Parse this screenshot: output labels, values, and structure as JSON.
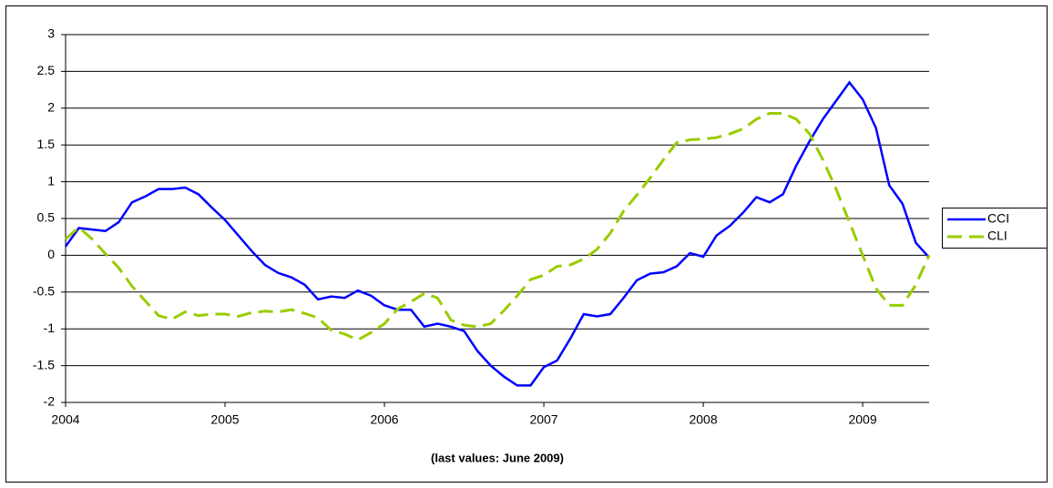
{
  "chart_data": {
    "type": "line",
    "xlabel": "(last values: June 2009)",
    "x": [
      2004,
      2004.0833,
      2004.1667,
      2004.25,
      2004.3333,
      2004.4167,
      2004.5,
      2004.5833,
      2004.6667,
      2004.75,
      2004.8333,
      2004.9167,
      2005,
      2005.0833,
      2005.1667,
      2005.25,
      2005.3333,
      2005.4167,
      2005.5,
      2005.5833,
      2005.6667,
      2005.75,
      2005.8333,
      2005.9167,
      2006,
      2006.0833,
      2006.1667,
      2006.25,
      2006.3333,
      2006.4167,
      2006.5,
      2006.5833,
      2006.6667,
      2006.75,
      2006.8333,
      2006.9167,
      2007,
      2007.0833,
      2007.1667,
      2007.25,
      2007.3333,
      2007.4167,
      2007.5,
      2007.5833,
      2007.6667,
      2007.75,
      2007.8333,
      2007.9167,
      2008,
      2008.0833,
      2008.1667,
      2008.25,
      2008.3333,
      2008.4167,
      2008.5,
      2008.5833,
      2008.6667,
      2008.75,
      2008.8333,
      2008.9167,
      2009,
      2009.0833,
      2009.1667,
      2009.25,
      2009.3333,
      2009.4167
    ],
    "series": [
      {
        "name": "CCI",
        "color": "#0000ff",
        "style": "solid",
        "values": [
          0.12,
          0.37,
          0.35,
          0.33,
          0.45,
          0.72,
          0.8,
          0.9,
          0.9,
          0.92,
          0.83,
          0.65,
          0.48,
          0.27,
          0.06,
          -0.13,
          -0.24,
          -0.3,
          -0.4,
          -0.6,
          -0.56,
          -0.58,
          -0.48,
          -0.55,
          -0.68,
          -0.74,
          -0.74,
          -0.97,
          -0.93,
          -0.97,
          -1.03,
          -1.3,
          -1.5,
          -1.65,
          -1.77,
          -1.77,
          -1.52,
          -1.43,
          -1.13,
          -0.8,
          -0.83,
          -0.8,
          -0.58,
          -0.34,
          -0.25,
          -0.23,
          -0.15,
          0.03,
          -0.02,
          0.27,
          0.4,
          0.58,
          0.79,
          0.72,
          0.83,
          1.22,
          1.55,
          1.85,
          2.1,
          2.35,
          2.12,
          1.73,
          0.95,
          0.7,
          0.17,
          -0.03
        ]
      },
      {
        "name": "CLI",
        "color": "#99cc00",
        "style": "dashed",
        "values": [
          0.22,
          0.38,
          0.22,
          0.02,
          -0.17,
          -0.42,
          -0.62,
          -0.82,
          -0.87,
          -0.77,
          -0.82,
          -0.8,
          -0.8,
          -0.83,
          -0.78,
          -0.76,
          -0.77,
          -0.74,
          -0.79,
          -0.85,
          -1.02,
          -1.07,
          -1.15,
          -1.05,
          -0.93,
          -0.73,
          -0.63,
          -0.52,
          -0.58,
          -0.88,
          -0.95,
          -0.97,
          -0.93,
          -0.75,
          -0.55,
          -0.33,
          -0.27,
          -0.15,
          -0.13,
          -0.05,
          0.08,
          0.3,
          0.6,
          0.82,
          1.05,
          1.3,
          1.53,
          1.57,
          1.58,
          1.6,
          1.65,
          1.72,
          1.85,
          1.93,
          1.93,
          1.85,
          1.65,
          1.3,
          0.9,
          0.45,
          0.0,
          -0.45,
          -0.68,
          -0.68,
          -0.4,
          0.0
        ]
      }
    ],
    "xlim": [
      2004,
      2009.4167
    ],
    "xticks": [
      2004,
      2005,
      2006,
      2007,
      2008,
      2009
    ],
    "ylim": [
      -2,
      3
    ],
    "yticks": [
      -2,
      -1.5,
      -1,
      -0.5,
      0,
      0.5,
      1,
      1.5,
      2,
      2.5,
      3
    ],
    "grid": true,
    "legend": "right"
  }
}
